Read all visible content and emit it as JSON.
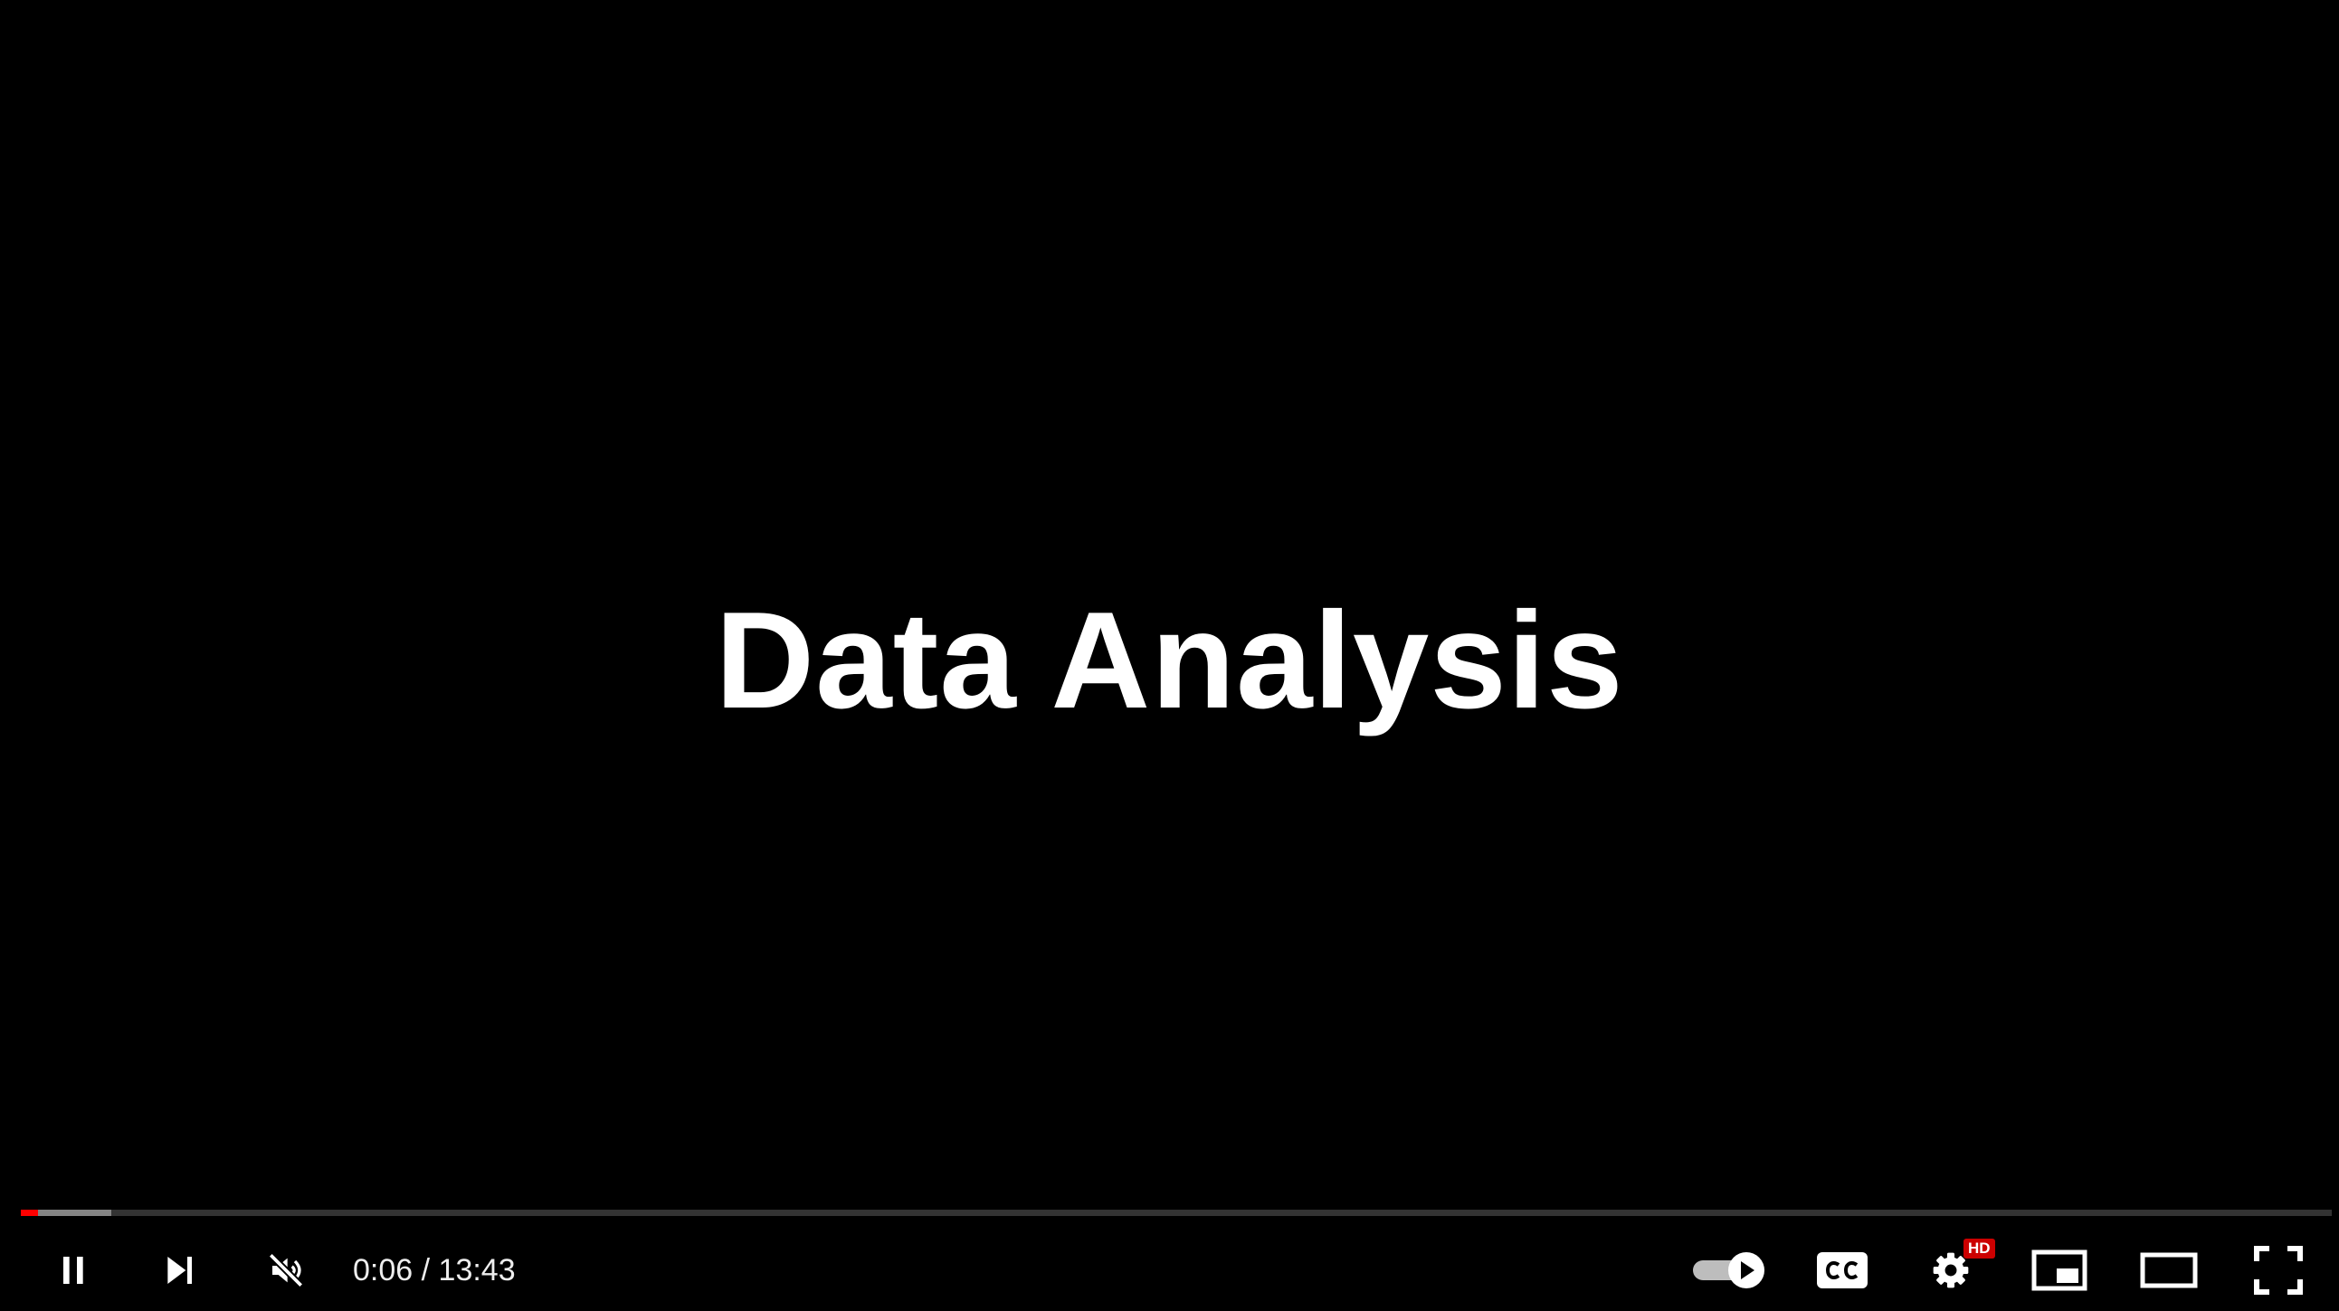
{
  "video": {
    "slide_title": "Data Analysis"
  },
  "progress": {
    "played_fraction": 0.0073,
    "buffered_fraction": 0.039,
    "played_color": "#ff0000"
  },
  "time": {
    "current": "0:06",
    "separator": " / ",
    "duration": "13:43"
  },
  "controls": {
    "left": [
      "pause-icon",
      "next-icon",
      "volume-muted-icon"
    ],
    "right": [
      "autoplay-toggle-icon",
      "captions-icon",
      "settings-icon",
      "miniplayer-icon",
      "theater-mode-icon",
      "fullscreen-icon"
    ]
  },
  "settings": {
    "quality_badge": "HD",
    "badge_color": "#cc0000"
  },
  "autoplay": {
    "enabled": true
  }
}
